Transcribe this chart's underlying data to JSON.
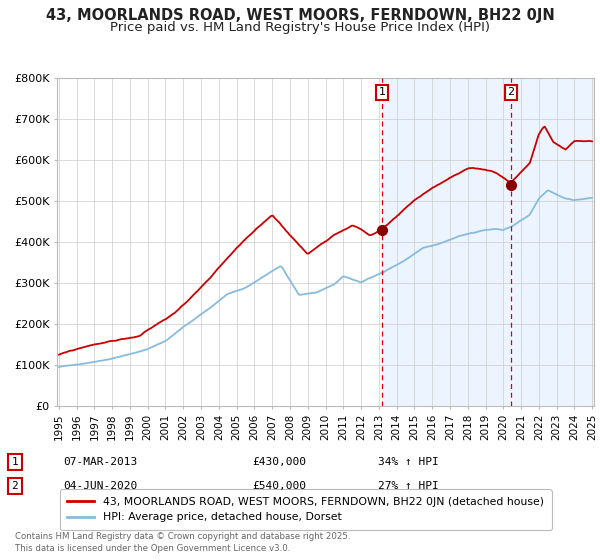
{
  "title": "43, MOORLANDS ROAD, WEST MOORS, FERNDOWN, BH22 0JN",
  "subtitle": "Price paid vs. HM Land Registry's House Price Index (HPI)",
  "background_color": "#ffffff",
  "plot_bg_color": "#ffffff",
  "shaded_region_color": "#ddeeff",
  "grid_color": "#cccccc",
  "red_line_color": "#cc0000",
  "blue_line_color": "#88bbdd",
  "dashed_line_color": "#dd0000",
  "marker_color": "#880000",
  "x_start": 1995,
  "x_end": 2025,
  "y_min": 0,
  "y_max": 800000,
  "y_ticks": [
    0,
    100000,
    200000,
    300000,
    400000,
    500000,
    600000,
    700000,
    800000
  ],
  "y_tick_labels": [
    "£0",
    "£100K",
    "£200K",
    "£300K",
    "£400K",
    "£500K",
    "£600K",
    "£700K",
    "£800K"
  ],
  "x_ticks": [
    1995,
    1996,
    1997,
    1998,
    1999,
    2000,
    2001,
    2002,
    2003,
    2004,
    2005,
    2006,
    2007,
    2008,
    2009,
    2010,
    2011,
    2012,
    2013,
    2014,
    2015,
    2016,
    2017,
    2018,
    2019,
    2020,
    2021,
    2022,
    2023,
    2024,
    2025
  ],
  "vline1_x": 2013.18,
  "vline2_x": 2020.43,
  "shade_start": 2013.18,
  "shade_end": 2025.5,
  "legend_entries": [
    {
      "label": "43, MOORLANDS ROAD, WEST MOORS, FERNDOWN, BH22 0JN (detached house)",
      "color": "#cc0000",
      "lw": 1.8
    },
    {
      "label": "HPI: Average price, detached house, Dorset",
      "color": "#88bbdd",
      "lw": 1.8
    }
  ],
  "table_entries": [
    {
      "num": "1",
      "date": "07-MAR-2013",
      "price": "£430,000",
      "change": "34% ↑ HPI"
    },
    {
      "num": "2",
      "date": "04-JUN-2020",
      "price": "£540,000",
      "change": "27% ↑ HPI"
    }
  ],
  "footer": "Contains HM Land Registry data © Crown copyright and database right 2025.\nThis data is licensed under the Open Government Licence v3.0.",
  "title_fontsize": 10.5,
  "subtitle_fontsize": 9.5
}
